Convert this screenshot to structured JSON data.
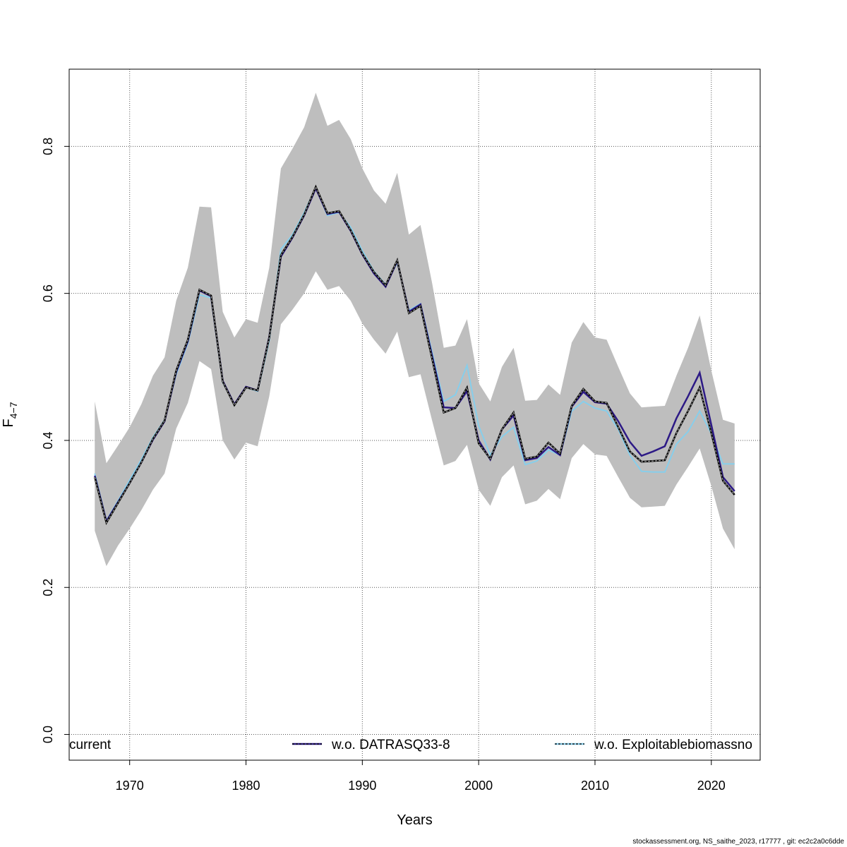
{
  "chart_data": {
    "type": "line",
    "xlabel": "Years",
    "ylabel_main": "F",
    "ylabel_sub": "4−7",
    "xlim": [
      1964.8,
      2024.2
    ],
    "ylim": [
      -0.035,
      0.905
    ],
    "x_ticks": [
      1970,
      1980,
      1990,
      2000,
      2010,
      2020
    ],
    "y_ticks": [
      0.0,
      0.2,
      0.4,
      0.6,
      0.8
    ],
    "y_tick_labels": [
      "0.0",
      "0.2",
      "0.4",
      "0.6",
      "0.8"
    ],
    "grid": true,
    "legend_position": "bottom",
    "band_color": "#bebebe",
    "years": [
      1967,
      1968,
      1969,
      1970,
      1971,
      1972,
      1973,
      1974,
      1975,
      1976,
      1977,
      1978,
      1979,
      1980,
      1981,
      1982,
      1983,
      1984,
      1985,
      1986,
      1987,
      1988,
      1989,
      1990,
      1991,
      1992,
      1993,
      1994,
      1995,
      1996,
      1997,
      1998,
      1999,
      2000,
      2001,
      2002,
      2003,
      2004,
      2005,
      2006,
      2007,
      2008,
      2009,
      2010,
      2011,
      2012,
      2013,
      2014,
      2015,
      2016,
      2017,
      2018,
      2019,
      2020,
      2021,
      2022
    ],
    "band_upper": [
      0.453,
      0.369,
      0.393,
      0.418,
      0.449,
      0.488,
      0.513,
      0.59,
      0.635,
      0.718,
      0.717,
      0.575,
      0.54,
      0.565,
      0.56,
      0.635,
      0.77,
      0.797,
      0.826,
      0.873,
      0.828,
      0.836,
      0.81,
      0.77,
      0.74,
      0.722,
      0.764,
      0.68,
      0.693,
      0.614,
      0.526,
      0.529,
      0.565,
      0.478,
      0.453,
      0.5,
      0.526,
      0.454,
      0.455,
      0.476,
      0.462,
      0.533,
      0.561,
      0.54,
      0.537,
      0.5,
      0.464,
      0.445,
      0.446,
      0.447,
      0.488,
      0.526,
      0.57,
      0.495,
      0.428,
      0.423
    ],
    "band_lower": [
      0.277,
      0.229,
      0.257,
      0.28,
      0.305,
      0.333,
      0.355,
      0.416,
      0.451,
      0.508,
      0.497,
      0.4,
      0.374,
      0.397,
      0.392,
      0.46,
      0.558,
      0.578,
      0.6,
      0.63,
      0.605,
      0.61,
      0.59,
      0.559,
      0.537,
      0.518,
      0.548,
      0.486,
      0.49,
      0.427,
      0.366,
      0.372,
      0.394,
      0.333,
      0.311,
      0.35,
      0.366,
      0.313,
      0.318,
      0.334,
      0.32,
      0.376,
      0.395,
      0.381,
      0.379,
      0.35,
      0.322,
      0.309,
      0.31,
      0.311,
      0.34,
      0.364,
      0.389,
      0.338,
      0.28,
      0.252
    ],
    "series": [
      {
        "name": "current",
        "color": "#000000",
        "style": "solid",
        "values": [
          0.35,
          0.288,
          0.315,
          0.342,
          0.37,
          0.402,
          0.427,
          0.495,
          0.537,
          0.605,
          0.597,
          0.48,
          0.448,
          0.472,
          0.468,
          0.54,
          0.652,
          0.677,
          0.707,
          0.745,
          0.709,
          0.712,
          0.686,
          0.654,
          0.629,
          0.611,
          0.645,
          0.573,
          0.583,
          0.511,
          0.438,
          0.444,
          0.472,
          0.396,
          0.375,
          0.415,
          0.438,
          0.375,
          0.378,
          0.397,
          0.382,
          0.447,
          0.47,
          0.453,
          0.451,
          0.418,
          0.385,
          0.371,
          0.372,
          0.373,
          0.41,
          0.44,
          0.472,
          0.41,
          0.345,
          0.326
        ]
      },
      {
        "name": "w.o. DATRASQ33-8",
        "color": "#2d1a86",
        "style": "solid",
        "values": [
          0.352,
          0.29,
          0.316,
          0.342,
          0.37,
          0.401,
          0.426,
          0.493,
          0.535,
          0.604,
          0.596,
          0.481,
          0.449,
          0.473,
          0.468,
          0.541,
          0.65,
          0.676,
          0.706,
          0.743,
          0.708,
          0.711,
          0.685,
          0.653,
          0.627,
          0.609,
          0.644,
          0.575,
          0.585,
          0.515,
          0.445,
          0.444,
          0.467,
          0.4,
          0.374,
          0.415,
          0.434,
          0.373,
          0.376,
          0.391,
          0.38,
          0.446,
          0.466,
          0.452,
          0.45,
          0.426,
          0.398,
          0.379,
          0.385,
          0.392,
          0.43,
          0.46,
          0.492,
          0.421,
          0.35,
          0.331
        ]
      },
      {
        "name": "w.o. Exploitablebiomassno",
        "color": "#87ceeb",
        "style": "solid",
        "values": [
          0.355,
          0.291,
          0.318,
          0.346,
          0.374,
          0.404,
          0.428,
          0.49,
          0.532,
          0.598,
          0.594,
          0.479,
          0.449,
          0.472,
          0.467,
          0.536,
          0.66,
          0.68,
          0.71,
          0.744,
          0.706,
          0.71,
          0.69,
          0.658,
          0.63,
          0.612,
          0.642,
          0.577,
          0.586,
          0.52,
          0.453,
          0.462,
          0.502,
          0.42,
          0.38,
          0.405,
          0.418,
          0.367,
          0.372,
          0.387,
          0.38,
          0.44,
          0.453,
          0.444,
          0.44,
          0.415,
          0.38,
          0.358,
          0.357,
          0.357,
          0.395,
          0.412,
          0.44,
          0.409,
          0.368,
          0.368
        ]
      }
    ]
  },
  "footer": "stockassessment.org, NS_saithe_2023, r17777 , git: ec2c2a0c6dde"
}
